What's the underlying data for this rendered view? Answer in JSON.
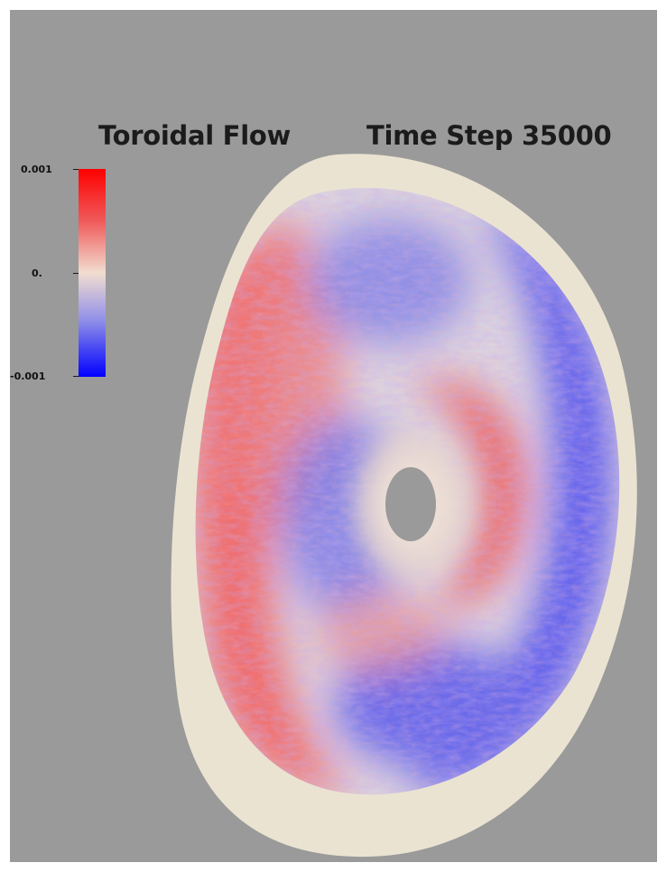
{
  "title_left": "Toroidal Flow",
  "title_right": "Time Step 35000",
  "colorbar": {
    "max_label": "0.001",
    "mid_label": "0.",
    "min_label": "-0.001",
    "colors": [
      "#ff0000",
      "#f2ddd0",
      "#0000ff"
    ]
  },
  "colors": {
    "background": "#9a9a9a",
    "boundary": "#ebe3d2",
    "positive": "#ff0000",
    "negative": "#0000ff",
    "zero": "#f2ddd0"
  }
}
